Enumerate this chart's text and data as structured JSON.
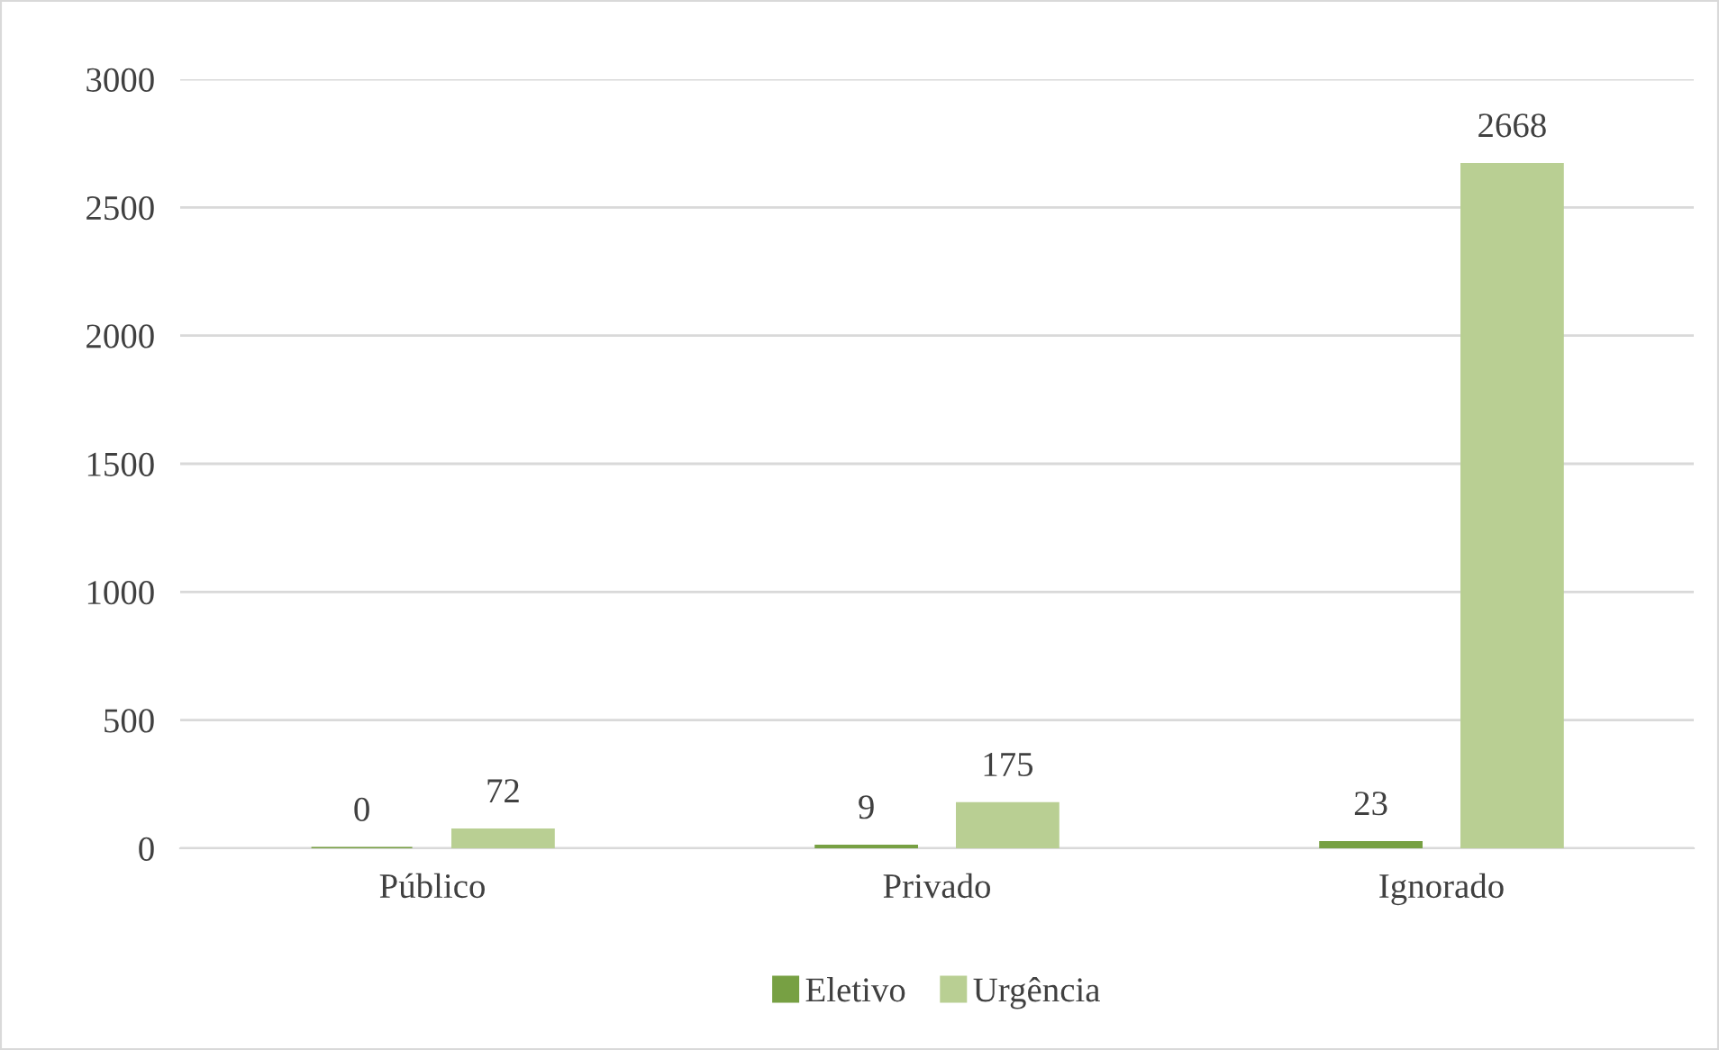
{
  "chart_data": {
    "type": "bar",
    "categories": [
      "Público",
      "Privado",
      "Ignorado"
    ],
    "series": [
      {
        "name": "Eletivo",
        "color": "#77a043",
        "values": [
          0,
          9,
          23
        ]
      },
      {
        "name": "Urgência",
        "color": "#b9cf93",
        "values": [
          72,
          175,
          2668
        ]
      }
    ],
    "ylim": [
      0,
      3000
    ],
    "yticks": [
      0,
      500,
      1000,
      1500,
      2000,
      2500,
      3000
    ],
    "grid": "y",
    "legend": "bottom",
    "data_labels": true
  }
}
